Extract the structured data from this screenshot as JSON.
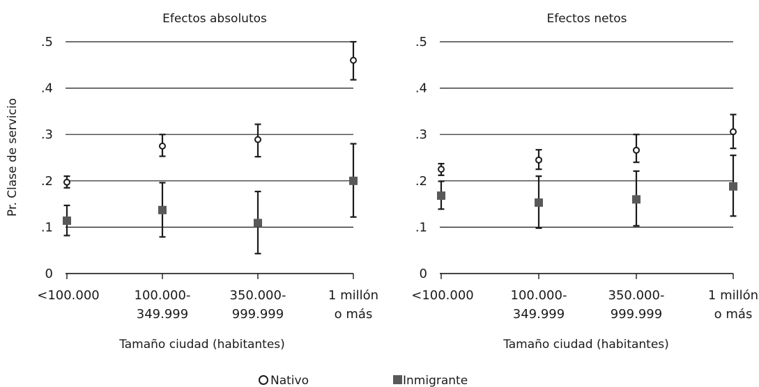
{
  "chart_data": [
    {
      "type": "scatter",
      "title": "Efectos absolutos",
      "xlabel": "Tamaño ciudad (habitantes)",
      "ylabel": "Pr. Clase de servicio",
      "ylim": [
        0,
        0.5
      ],
      "yticks": [
        {
          "value": 0,
          "label": "0"
        },
        {
          "value": 0.1,
          "label": ".1"
        },
        {
          "value": 0.2,
          "label": ".2"
        },
        {
          "value": 0.3,
          "label": ".3"
        },
        {
          "value": 0.4,
          "label": ".4"
        },
        {
          "value": 0.5,
          "label": ".5"
        }
      ],
      "categories": [
        [
          "<100.000"
        ],
        [
          "100.000-",
          "349.999"
        ],
        [
          "350.000-",
          "999.999"
        ],
        [
          "1 millón",
          "o más"
        ]
      ],
      "grid": true,
      "series": [
        {
          "name": "Nativo",
          "marker": "hollow-circle",
          "values": [
            0.197,
            0.275,
            0.289,
            0.46
          ],
          "lower": [
            0.185,
            0.253,
            0.252,
            0.418
          ],
          "upper": [
            0.21,
            0.3,
            0.322,
            0.5
          ]
        },
        {
          "name": "Inmigrante",
          "marker": "filled-square",
          "values": [
            0.114,
            0.137,
            0.109,
            0.2
          ],
          "lower": [
            0.082,
            0.079,
            0.043,
            0.122
          ],
          "upper": [
            0.147,
            0.196,
            0.177,
            0.28
          ]
        }
      ]
    },
    {
      "type": "scatter",
      "title": "Efectos netos",
      "xlabel": "Tamaño ciudad (habitantes)",
      "ylabel": "",
      "ylim": [
        0,
        0.5
      ],
      "yticks": [
        {
          "value": 0,
          "label": "0"
        },
        {
          "value": 0.1,
          "label": ".1"
        },
        {
          "value": 0.2,
          "label": ".2"
        },
        {
          "value": 0.3,
          "label": ".3"
        },
        {
          "value": 0.4,
          "label": ".4"
        },
        {
          "value": 0.5,
          "label": ".5"
        }
      ],
      "categories": [
        [
          "<100.000"
        ],
        [
          "100.000-",
          "349.999"
        ],
        [
          "350.000-",
          "999.999"
        ],
        [
          "1 millón",
          "o más"
        ]
      ],
      "grid": true,
      "series": [
        {
          "name": "Nativo",
          "marker": "hollow-circle",
          "values": [
            0.225,
            0.245,
            0.266,
            0.306
          ],
          "lower": [
            0.212,
            0.225,
            0.24,
            0.27
          ],
          "upper": [
            0.237,
            0.267,
            0.3,
            0.343
          ]
        },
        {
          "name": "Inmigrante",
          "marker": "filled-square",
          "values": [
            0.168,
            0.153,
            0.16,
            0.188
          ],
          "lower": [
            0.139,
            0.098,
            0.103,
            0.124
          ],
          "upper": [
            0.199,
            0.21,
            0.221,
            0.255
          ]
        }
      ]
    }
  ],
  "legend": {
    "placement": "bottom",
    "items": [
      {
        "label": "Nativo",
        "marker": "hollow-circle"
      },
      {
        "label": "Inmigrante",
        "marker": "filled-square",
        "color": "#595959"
      }
    ]
  },
  "colors": {
    "text": "#1a1a1a",
    "grid": "#1a1a1a",
    "square": "#595959"
  }
}
